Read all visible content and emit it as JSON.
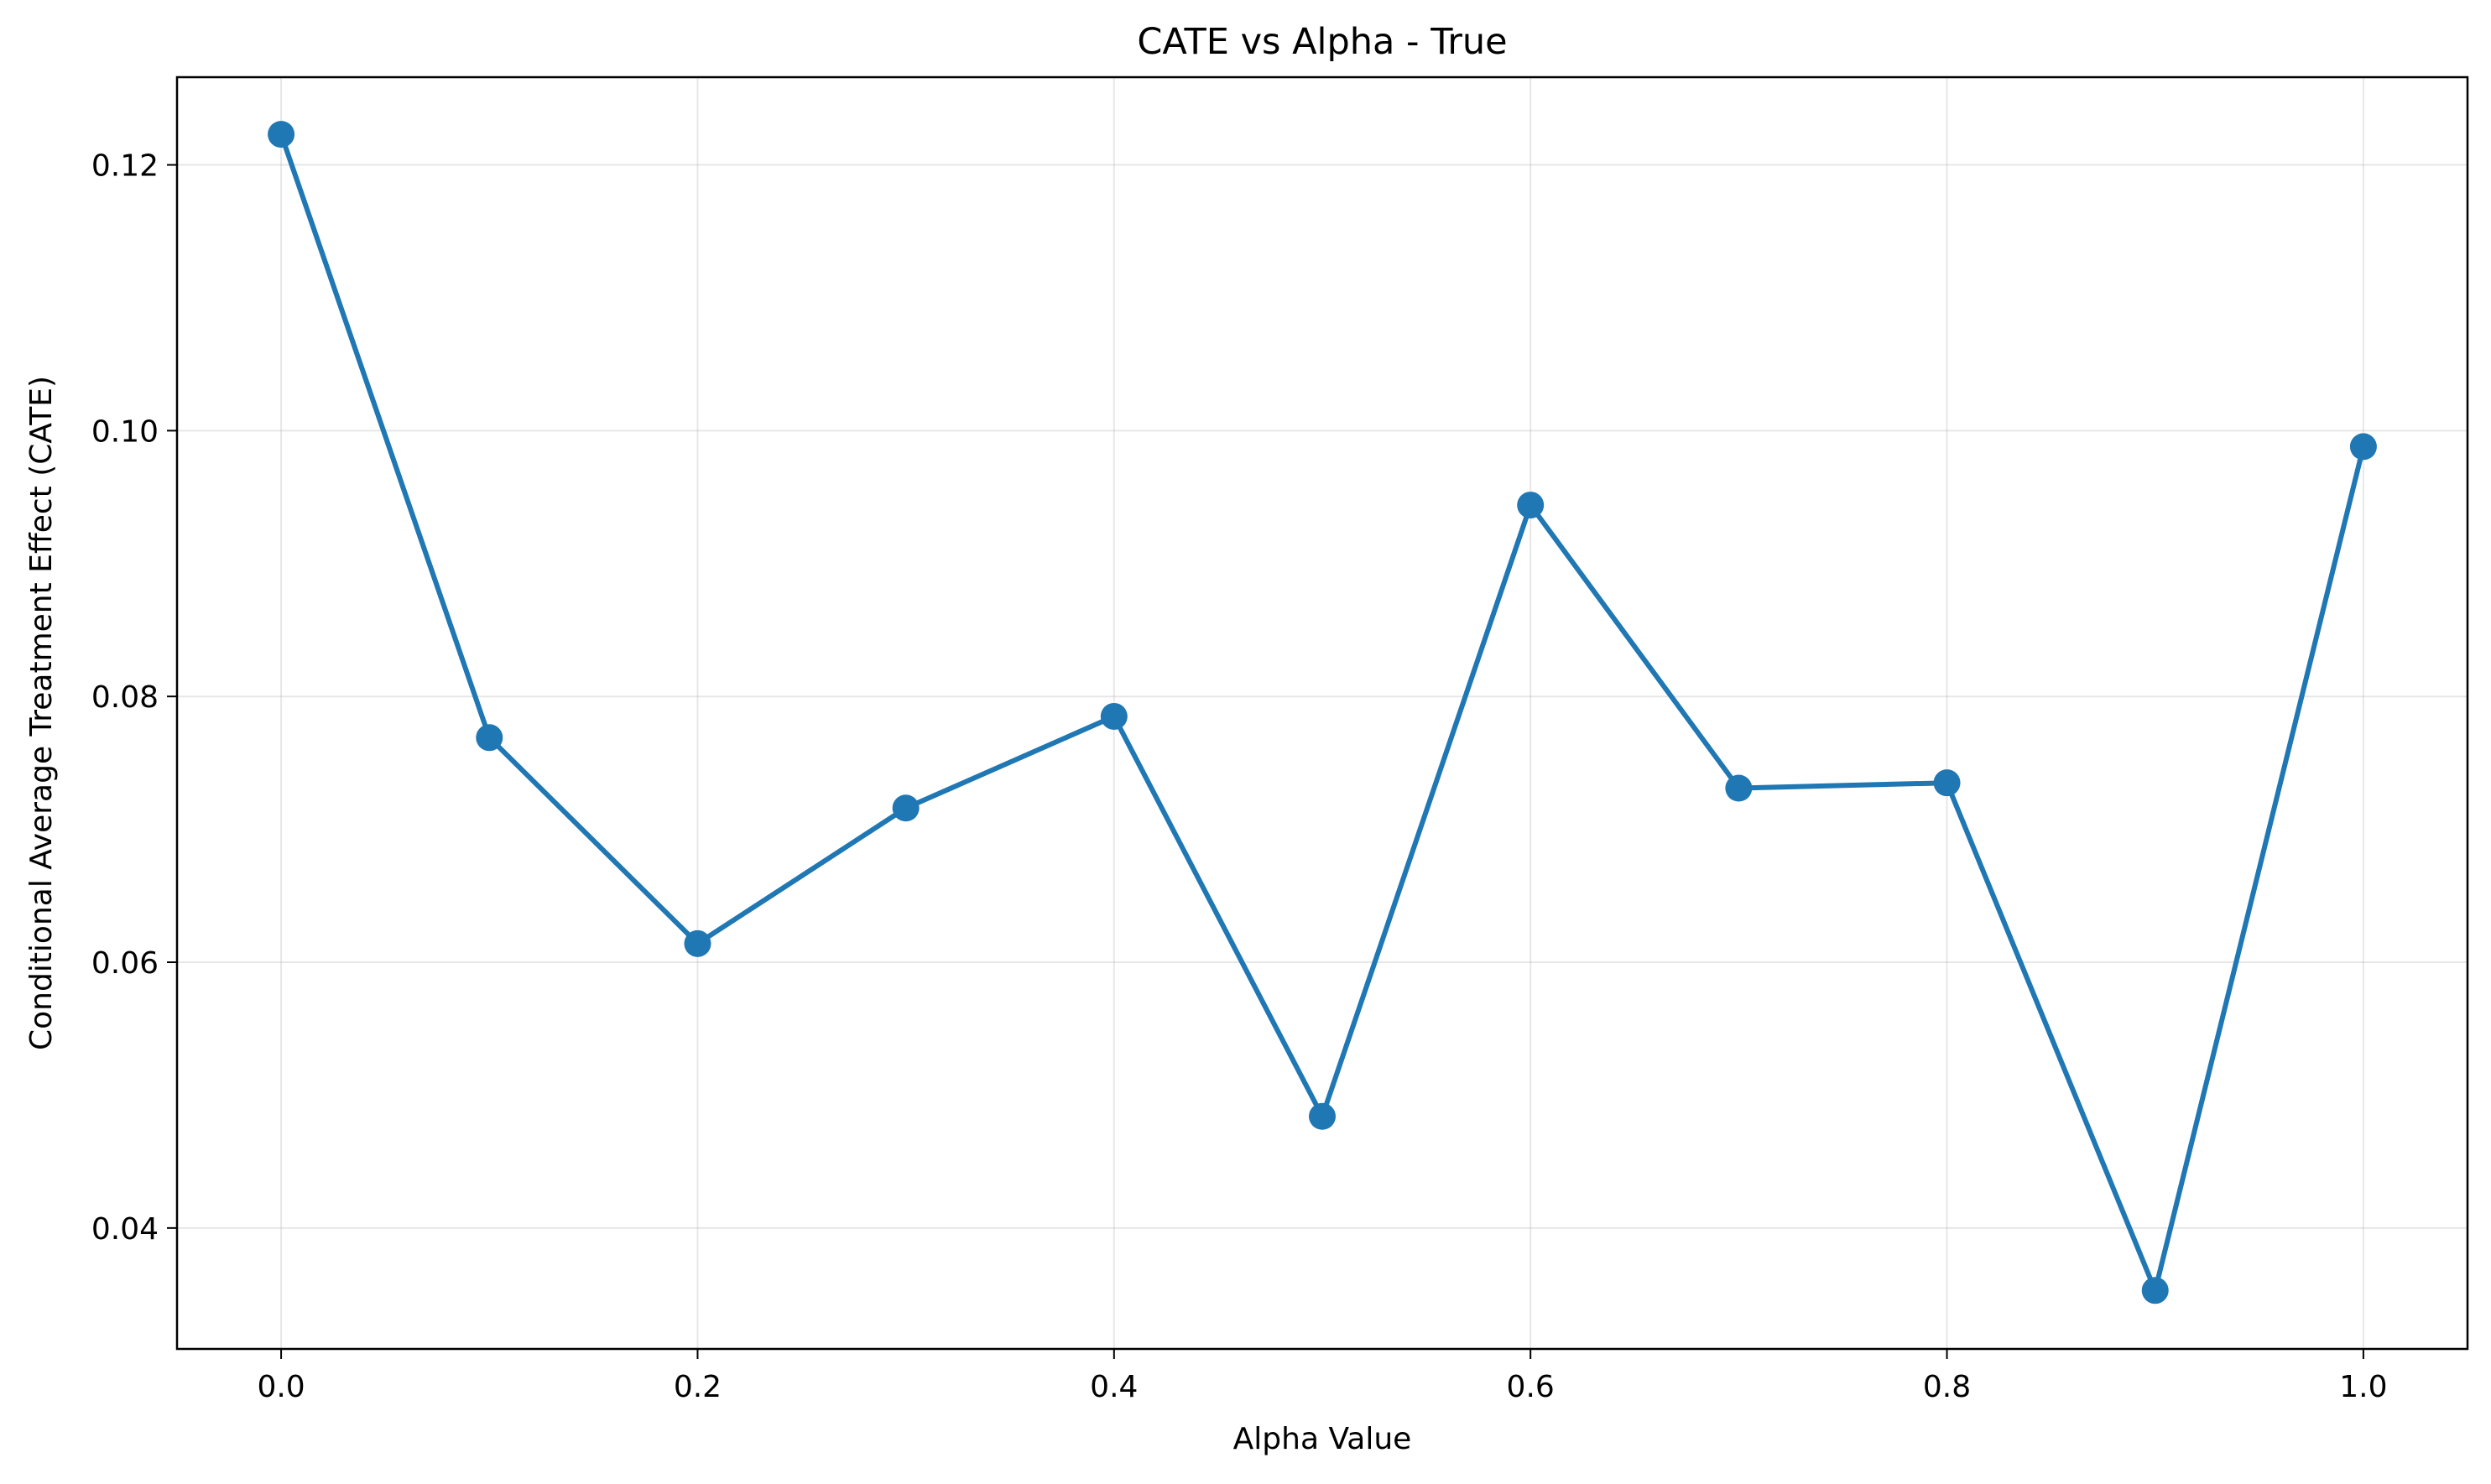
{
  "chart_data": {
    "type": "line",
    "title": "CATE vs Alpha - True",
    "xlabel": "Alpha Value",
    "ylabel": "Conditional Average Treatment Effect (CATE)",
    "xlim": [
      -0.05,
      1.05
    ],
    "ylim": [
      0.0309,
      0.1266
    ],
    "xticks": [
      0.0,
      0.2,
      0.4,
      0.6,
      0.8,
      1.0
    ],
    "xtick_labels": [
      "0.0",
      "0.2",
      "0.4",
      "0.6",
      "0.8",
      "1.0"
    ],
    "yticks": [
      0.04,
      0.06,
      0.08,
      0.1,
      0.12
    ],
    "ytick_labels": [
      "0.04",
      "0.06",
      "0.08",
      "0.10",
      "0.12"
    ],
    "grid": true,
    "series": [
      {
        "color": "#1f77b4",
        "marker": "circle",
        "x": [
          0.0,
          0.1,
          0.2,
          0.3,
          0.4,
          0.5,
          0.6,
          0.7,
          0.8,
          0.9,
          1.0
        ],
        "y": [
          0.1223,
          0.0769,
          0.0614,
          0.0716,
          0.0785,
          0.0484,
          0.0944,
          0.0731,
          0.0735,
          0.0353,
          0.0988
        ]
      }
    ]
  }
}
